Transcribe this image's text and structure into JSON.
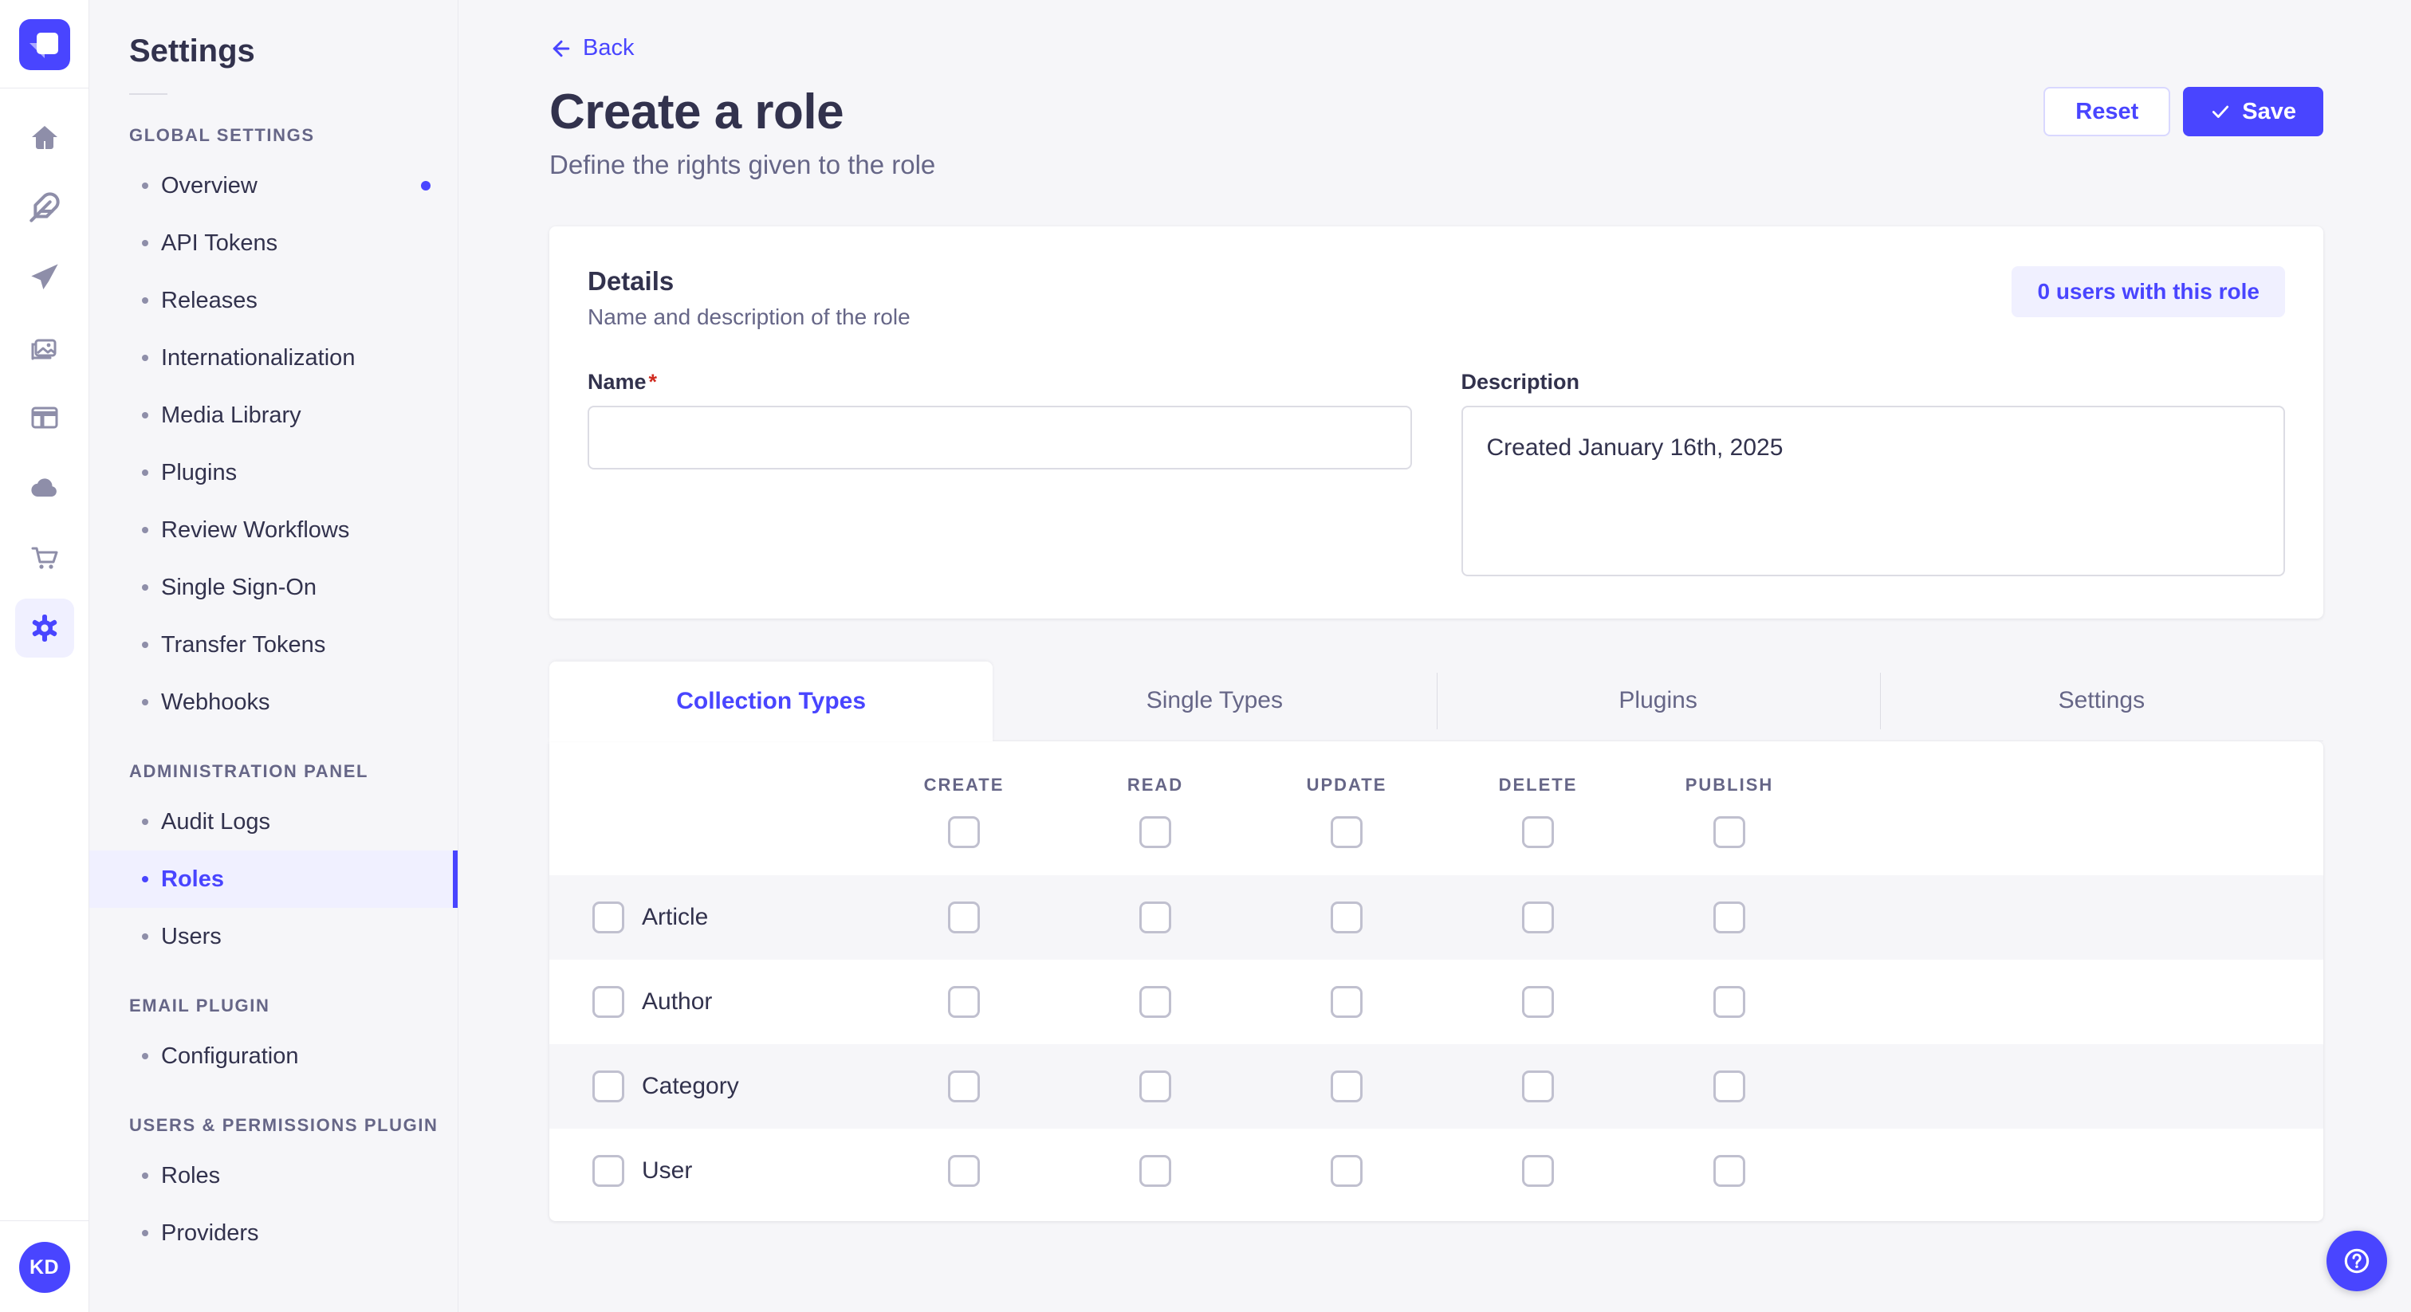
{
  "colors": {
    "accent": "#4945ff",
    "accent_bg": "#f0f0ff",
    "page_bg": "#f6f6f9",
    "border": "#eaeaef",
    "input_border": "#dcdce4",
    "checkbox_border": "#c0c0cf",
    "text": "#32324d",
    "text_muted": "#666687",
    "required_red": "#d02b20"
  },
  "rail": {
    "logo_icon": "strapi-logo",
    "icons": [
      "home",
      "content-manager",
      "releases",
      "media-library",
      "content-type-builder",
      "cloud",
      "marketplace",
      "settings"
    ],
    "active_icon": "settings",
    "avatar_initials": "KD"
  },
  "sidebar": {
    "title": "Settings",
    "sections": [
      {
        "label": "GLOBAL SETTINGS",
        "items": [
          {
            "label": "Overview",
            "dot": true
          },
          {
            "label": "API Tokens"
          },
          {
            "label": "Releases"
          },
          {
            "label": "Internationalization"
          },
          {
            "label": "Media Library"
          },
          {
            "label": "Plugins"
          },
          {
            "label": "Review Workflows"
          },
          {
            "label": "Single Sign-On"
          },
          {
            "label": "Transfer Tokens"
          },
          {
            "label": "Webhooks"
          }
        ]
      },
      {
        "label": "ADMINISTRATION PANEL",
        "items": [
          {
            "label": "Audit Logs"
          },
          {
            "label": "Roles",
            "active": true
          },
          {
            "label": "Users"
          }
        ]
      },
      {
        "label": "EMAIL PLUGIN",
        "items": [
          {
            "label": "Configuration"
          }
        ]
      },
      {
        "label": "USERS & PERMISSIONS PLUGIN",
        "items": [
          {
            "label": "Roles"
          },
          {
            "label": "Providers"
          }
        ]
      }
    ]
  },
  "header": {
    "back_label": "Back",
    "title": "Create a role",
    "subtitle": "Define the rights given to the role",
    "reset_label": "Reset",
    "save_label": "Save"
  },
  "details": {
    "title": "Details",
    "subtitle": "Name and description of the role",
    "users_pill": "0 users with this role",
    "name_label": "Name",
    "required_mark": "*",
    "name_value": "",
    "description_label": "Description",
    "description_value": "Created January 16th, 2025"
  },
  "tabs": [
    {
      "label": "Collection Types",
      "active": true
    },
    {
      "label": "Single Types"
    },
    {
      "label": "Plugins"
    },
    {
      "label": "Settings"
    }
  ],
  "permissions": {
    "columns": [
      "CREATE",
      "READ",
      "UPDATE",
      "DELETE",
      "PUBLISH"
    ],
    "rows": [
      "Article",
      "Author",
      "Category",
      "User"
    ],
    "checked": []
  },
  "help": {
    "icon": "question-mark"
  }
}
